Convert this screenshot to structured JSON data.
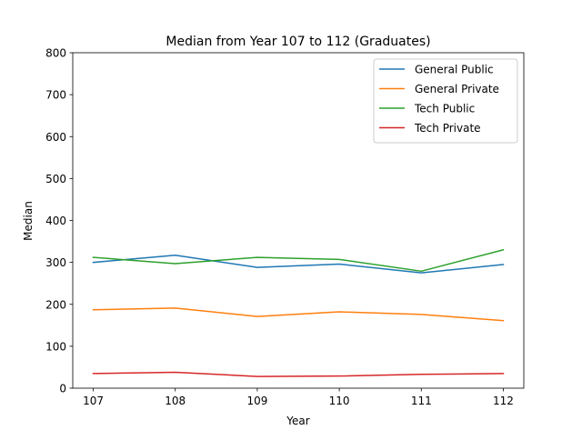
{
  "chart_data": {
    "type": "line",
    "title": "Median from Year 107 to 112 (Graduates)",
    "xlabel": "Year",
    "ylabel": "Median",
    "x": [
      107,
      108,
      109,
      110,
      111,
      112
    ],
    "xlim": [
      106.75,
      112.25
    ],
    "ylim": [
      0,
      800
    ],
    "yticks": [
      0,
      100,
      200,
      300,
      400,
      500,
      600,
      700,
      800
    ],
    "xticks": [
      107,
      108,
      109,
      110,
      111,
      112
    ],
    "grid": false,
    "legend_position": "top-right",
    "series": [
      {
        "name": "General Public",
        "color": "#1f77b4",
        "values": [
          300,
          317,
          288,
          296,
          275,
          295
        ]
      },
      {
        "name": "General Private",
        "color": "#ff7f0e",
        "values": [
          187,
          191,
          171,
          182,
          176,
          161
        ]
      },
      {
        "name": "Tech Public",
        "color": "#2ca02c",
        "values": [
          312,
          297,
          312,
          307,
          279,
          330
        ]
      },
      {
        "name": "Tech Private",
        "color": "#d62728",
        "values": [
          35,
          38,
          28,
          29,
          33,
          35
        ]
      }
    ]
  }
}
